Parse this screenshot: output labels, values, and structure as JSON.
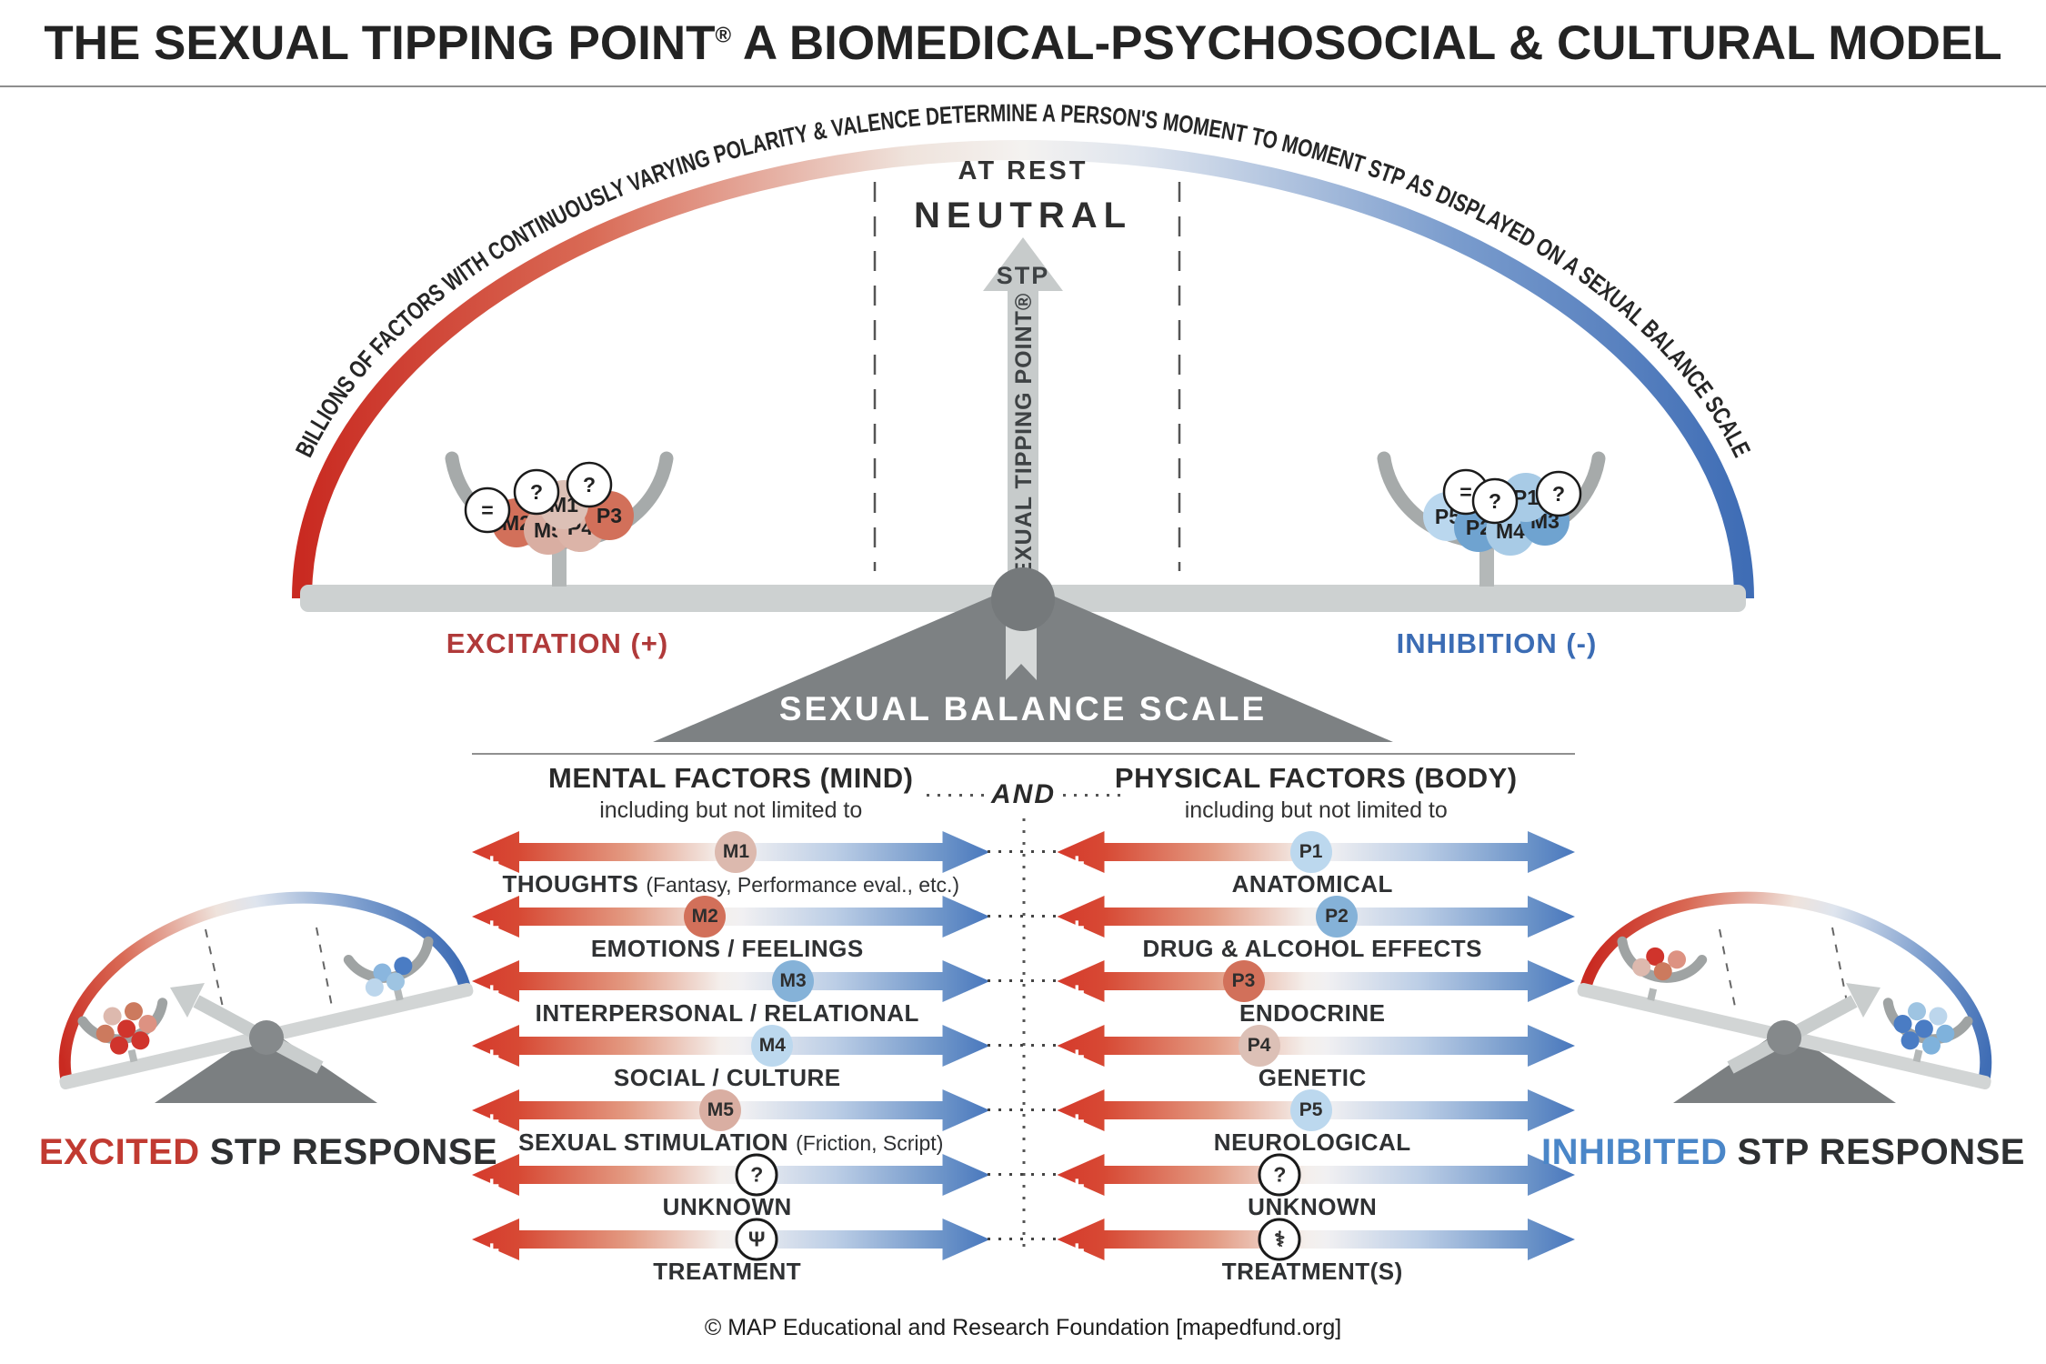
{
  "title": {
    "pre": "THE SEXUAL TIPPING POINT",
    "reg": "®",
    "post": " A BIOMEDICAL-PSYCHOSOCIAL & CULTURAL MODEL"
  },
  "scale": {
    "arc_text": "BILLIONS OF FACTORS WITH CONTINUOUSLY VARYING POLARITY & VALENCE DETERMINE A PERSON'S MOMENT TO MOMENT STP AS DISPLAYED ON A SEXUAL BALANCE SCALE",
    "at_rest": "AT REST",
    "neutral": "NEUTRAL",
    "stp_arrow": "STP",
    "stp_vertical": "SEXUAL TIPPING POINT®",
    "excitation_label": "EXCITATION (+)",
    "inhibition_label": "INHIBITION (-)",
    "balance_label": "SEXUAL BALANCE SCALE",
    "left_pan_weights": [
      {
        "id": "M2",
        "fill": "#d2705a"
      },
      {
        "id": "M5",
        "fill": "#d9aea2"
      },
      {
        "id": "P4",
        "fill": "#dcb4a8"
      },
      {
        "id": "P3",
        "fill": "#d2705a"
      },
      {
        "id": "M1",
        "fill": "#dcc0b6"
      },
      {
        "id": "=",
        "fill": "#ffffff"
      },
      {
        "id": "?",
        "fill": "#ffffff"
      },
      {
        "id": "?",
        "fill": "#ffffff"
      }
    ],
    "right_pan_weights": [
      {
        "id": "P5",
        "fill": "#bad7ee"
      },
      {
        "id": "P2",
        "fill": "#6fa3d0"
      },
      {
        "id": "M4",
        "fill": "#a8cbe6"
      },
      {
        "id": "M3",
        "fill": "#6fa3d0"
      },
      {
        "id": "P1",
        "fill": "#a8cbe6"
      },
      {
        "id": "=",
        "fill": "#ffffff"
      },
      {
        "id": "?",
        "fill": "#ffffff"
      },
      {
        "id": "?",
        "fill": "#ffffff"
      }
    ],
    "colors": {
      "excitation": "#b03a3a",
      "inhibition": "#3b6cb4",
      "arc_red": "#c92a21",
      "arc_blue": "#3f6db5"
    }
  },
  "factors": {
    "and_label": "AND",
    "plus": "+",
    "minus": "–",
    "mental": {
      "header": "MENTAL FACTORS (MIND)",
      "sub": "including but not limited to",
      "rows": [
        {
          "id": "M1",
          "label": "THOUGHTS",
          "note": "(Fantasy, Performance eval., etc.)",
          "color": "#dcb9ae",
          "pos": 51
        },
        {
          "id": "M2",
          "label": "EMOTIONS / FEELINGS",
          "note": "",
          "color": "#d2705a",
          "pos": 45
        },
        {
          "id": "M3",
          "label": "INTERPERSONAL / RELATIONAL",
          "note": "",
          "color": "#85b2d8",
          "pos": 62
        },
        {
          "id": "M4",
          "label": "SOCIAL / CULTURE",
          "note": "",
          "color": "#bcd8ee",
          "pos": 58
        },
        {
          "id": "M5",
          "label": "SEXUAL STIMULATION",
          "note": "(Friction, Script)",
          "color": "#d9aea2",
          "pos": 48
        },
        {
          "id": "?",
          "label": "UNKNOWN",
          "note": "",
          "color": "#ffffff",
          "pos": 55
        },
        {
          "id": "Ψ",
          "label": "TREATMENT",
          "note": "",
          "color": "#ffffff",
          "pos": 55
        }
      ]
    },
    "physical": {
      "header": "PHYSICAL FACTORS (BODY)",
      "sub": "including but not limited to",
      "rows": [
        {
          "id": "P1",
          "label": "ANATOMICAL",
          "note": "",
          "color": "#bcd8ee",
          "pos": 49
        },
        {
          "id": "P2",
          "label": "DRUG & ALCOHOL EFFECTS",
          "note": "",
          "color": "#85b2d8",
          "pos": 54
        },
        {
          "id": "P3",
          "label": "ENDOCRINE",
          "note": "",
          "color": "#d2705a",
          "pos": 36
        },
        {
          "id": "P4",
          "label": "GENETIC",
          "note": "",
          "color": "#dcc0b6",
          "pos": 39
        },
        {
          "id": "P5",
          "label": "NEUROLOGICAL",
          "note": "",
          "color": "#bcd8ee",
          "pos": 49
        },
        {
          "id": "?",
          "label": "UNKNOWN",
          "note": "",
          "color": "#ffffff",
          "pos": 43
        },
        {
          "id": "⚕",
          "label": "TREATMENT(S)",
          "note": "",
          "color": "#ffffff",
          "pos": 43
        }
      ]
    }
  },
  "responses": {
    "excited": {
      "word": "EXCITED",
      "rest": "STP RESPONSE",
      "word_color": "#c13a31"
    },
    "inhibited": {
      "word": "INHIBITED",
      "rest": "STP RESPONSE",
      "word_color": "#4a86c8"
    }
  },
  "footer": "© MAP Educational and Research Foundation [mapedfund.org]"
}
